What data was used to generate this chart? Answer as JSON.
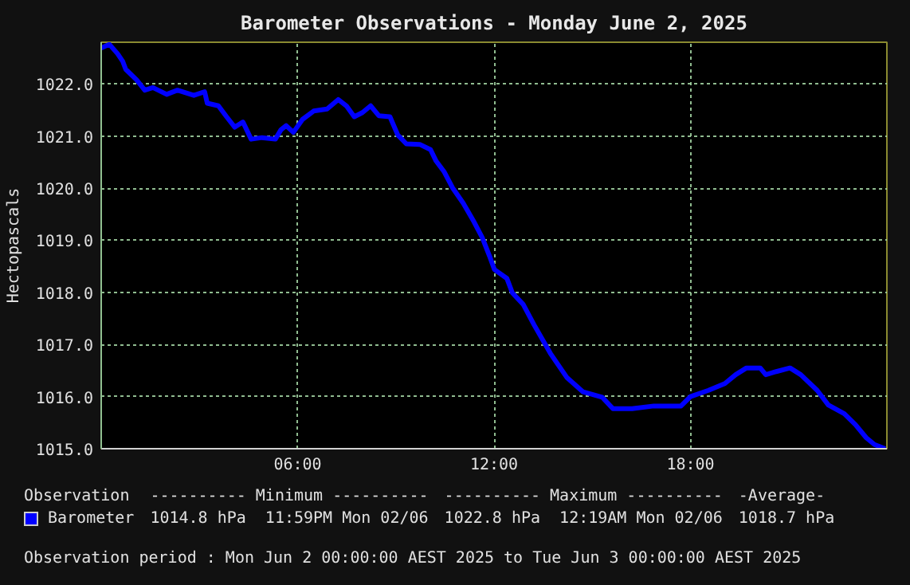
{
  "chart_data": {
    "type": "line",
    "title": "Barometer Observations - Monday June 2, 2025",
    "ylabel": "Hectopascals",
    "x": [
      0,
      0.25,
      0.5,
      0.66,
      0.75,
      1.08,
      1.33,
      1.58,
      2.0,
      2.33,
      2.83,
      3.16,
      3.24,
      3.58,
      3.83,
      4.08,
      4.33,
      4.58,
      4.91,
      5.32,
      5.49,
      5.65,
      5.87,
      6.15,
      6.49,
      6.9,
      7.24,
      7.49,
      7.73,
      7.98,
      8.23,
      8.48,
      8.82,
      9.06,
      9.32,
      9.73,
      10.06,
      10.23,
      10.48,
      10.73,
      11.06,
      11.39,
      11.64,
      11.86,
      12.01,
      12.39,
      12.56,
      12.89,
      13.22,
      13.72,
      14.22,
      14.72,
      15.3,
      15.63,
      16.22,
      16.88,
      17.71,
      18.0,
      18.55,
      19.05,
      19.38,
      19.71,
      20.13,
      20.3,
      20.62,
      21.04,
      21.37,
      21.87,
      22.21,
      22.7,
      23.04,
      23.37,
      23.62,
      23.95
    ],
    "series": [
      {
        "name": "Barometer",
        "color": "#0000ff",
        "values": [
          1022.69,
          1022.76,
          1022.58,
          1022.43,
          1022.28,
          1022.08,
          1021.88,
          1021.93,
          1021.8,
          1021.88,
          1021.78,
          1021.85,
          1021.63,
          1021.58,
          1021.37,
          1021.17,
          1021.27,
          1020.94,
          1020.97,
          1020.94,
          1021.12,
          1021.2,
          1021.07,
          1021.32,
          1021.48,
          1021.52,
          1021.7,
          1021.58,
          1021.37,
          1021.45,
          1021.58,
          1021.39,
          1021.37,
          1021.02,
          1020.85,
          1020.84,
          1020.74,
          1020.52,
          1020.31,
          1020.01,
          1019.71,
          1019.35,
          1019.05,
          1018.7,
          1018.44,
          1018.27,
          1017.99,
          1017.77,
          1017.38,
          1016.83,
          1016.37,
          1016.09,
          1015.99,
          1015.77,
          1015.77,
          1015.82,
          1015.82,
          1016.0,
          1016.12,
          1016.25,
          1016.42,
          1016.55,
          1016.55,
          1016.42,
          1016.48,
          1016.55,
          1016.42,
          1016.12,
          1015.84,
          1015.67,
          1015.46,
          1015.21,
          1015.08,
          1015.0
        ]
      }
    ],
    "xlim": [
      0,
      24
    ],
    "xticks": [
      {
        "value": 6,
        "label": "06:00"
      },
      {
        "value": 12,
        "label": "12:00"
      },
      {
        "value": 18,
        "label": "18:00"
      }
    ],
    "ylim": [
      1015,
      1022.8
    ],
    "yticks": [
      {
        "value": 1015,
        "label": "1015.0"
      },
      {
        "value": 1016,
        "label": "1016.0"
      },
      {
        "value": 1017,
        "label": "1017.0"
      },
      {
        "value": 1018,
        "label": "1018.0"
      },
      {
        "value": 1019,
        "label": "1019.0"
      },
      {
        "value": 1020,
        "label": "1020.0"
      },
      {
        "value": 1021,
        "label": "1021.0"
      },
      {
        "value": 1022,
        "label": "1022.0"
      }
    ],
    "grid": true,
    "legend": "bottom left",
    "line_style": "solid",
    "annotations": [
      "Observation",
      "---------- Minimum ----------",
      "---------- Maximum ----------",
      "-Average-",
      "1014.8 hPa  11:59PM Mon 02/06",
      "1022.8 hPa  12:19AM Mon 02/06",
      "1018.7 hPa",
      "Observation period : Mon Jun 2 00:00:00 AEST 2025 to Tue Jun 3 00:00:00 AEST 2025"
    ]
  }
}
